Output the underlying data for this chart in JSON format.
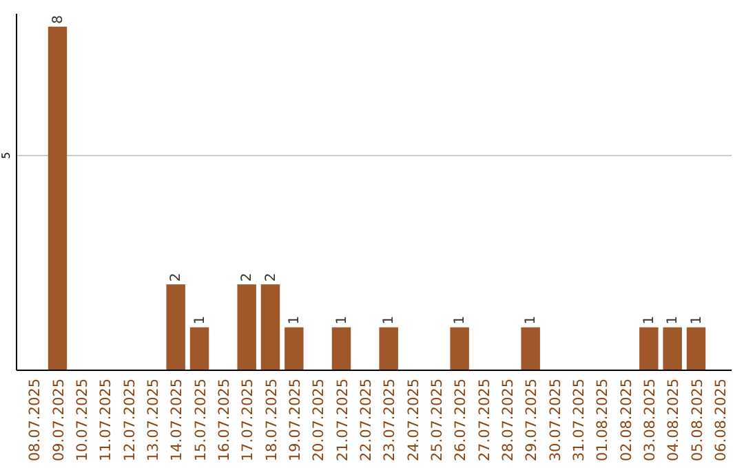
{
  "chart_data": {
    "type": "bar",
    "categories": [
      "08.07.2025",
      "09.07.2025",
      "10.07.2025",
      "11.07.2025",
      "12.07.2025",
      "13.07.2025",
      "14.07.2025",
      "15.07.2025",
      "16.07.2025",
      "17.07.2025",
      "18.07.2025",
      "19.07.2025",
      "20.07.2025",
      "21.07.2025",
      "22.07.2025",
      "23.07.2025",
      "24.07.2025",
      "25.07.2025",
      "26.07.2025",
      "27.07.2025",
      "28.07.2025",
      "29.07.2025",
      "30.07.2025",
      "31.07.2025",
      "01.08.2025",
      "02.08.2025",
      "03.08.2025",
      "04.08.2025",
      "05.08.2025",
      "06.08.2025"
    ],
    "values": [
      0,
      8,
      0,
      0,
      0,
      0,
      2,
      1,
      0,
      2,
      2,
      1,
      0,
      1,
      0,
      1,
      0,
      0,
      1,
      0,
      0,
      1,
      0,
      0,
      0,
      0,
      1,
      1,
      1,
      0
    ],
    "value_labels": [
      null,
      "8",
      null,
      null,
      null,
      null,
      "2",
      "1",
      null,
      "2",
      "2",
      "1",
      null,
      "1",
      null,
      "1",
      null,
      null,
      "1",
      null,
      null,
      "1",
      null,
      null,
      null,
      null,
      "1",
      "1",
      "1",
      null
    ],
    "color": "#a0572a",
    "ylim": [
      0,
      8.3
    ],
    "yticks": [
      5
    ],
    "grid": "y"
  }
}
